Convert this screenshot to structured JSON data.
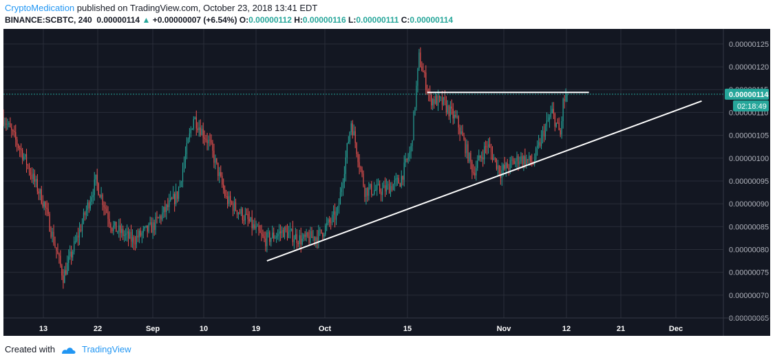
{
  "header": {
    "author": "CryptoMedication",
    "published_text": "published on TradingView.com, October 23, 2018 13:41 EDT"
  },
  "ohlc_bar": {
    "symbol": "BINANCE:SCBTC, 240",
    "last_price": "0.00000114",
    "up_arrow": "▲",
    "change": "+0.00000007 (+6.54%)",
    "o_label": "O:",
    "o_value": "0.00000112",
    "h_label": "H:",
    "h_value": "0.00000116",
    "l_label": "L:",
    "l_value": "0.00000111",
    "c_label": "C:",
    "c_value": "0.00000114"
  },
  "footer": {
    "created_with": "Created with",
    "brand": "TradingView"
  },
  "colors": {
    "background": "#131722",
    "grid": "#2a2e39",
    "up": "#26a69a",
    "down": "#ef5350",
    "trendline": "#ffffff",
    "price_line": "#26a69a",
    "brand": "#2196f3"
  },
  "chart_data": {
    "type": "candlestick",
    "title": "BINANCE:SCBTC, 240",
    "ylim": [
      6.5e-07,
      1.283e-06
    ],
    "y_ticks": [
      "0.00000065",
      "0.00000070",
      "0.00000075",
      "0.00000080",
      "0.00000085",
      "0.00000090",
      "0.00000095",
      "0.00000100",
      "0.00000105",
      "0.00000110",
      "0.00000115",
      "0.00000120",
      "0.00000125"
    ],
    "x_ticks": [
      "13",
      "22",
      "Sep",
      "10",
      "19",
      "Oct",
      "15",
      "Nov",
      "12",
      "21",
      "Dec"
    ],
    "current_price_label": "0.00000114",
    "countdown_label": "02:18:49",
    "price_anchors": [
      {
        "t": 0,
        "p": 1.09
      },
      {
        "t": 14,
        "p": 1.01
      },
      {
        "t": 30,
        "p": 0.9
      },
      {
        "t": 44,
        "p": 0.74
      },
      {
        "t": 56,
        "p": 0.84
      },
      {
        "t": 68,
        "p": 0.95
      },
      {
        "t": 80,
        "p": 0.85
      },
      {
        "t": 95,
        "p": 0.82
      },
      {
        "t": 110,
        "p": 0.85
      },
      {
        "t": 128,
        "p": 0.92
      },
      {
        "t": 140,
        "p": 1.09
      },
      {
        "t": 152,
        "p": 1.03
      },
      {
        "t": 164,
        "p": 0.91
      },
      {
        "t": 178,
        "p": 0.87
      },
      {
        "t": 192,
        "p": 0.82
      },
      {
        "t": 206,
        "p": 0.84
      },
      {
        "t": 220,
        "p": 0.82
      },
      {
        "t": 232,
        "p": 0.83
      },
      {
        "t": 246,
        "p": 0.88
      },
      {
        "t": 256,
        "p": 1.08
      },
      {
        "t": 266,
        "p": 0.93
      },
      {
        "t": 280,
        "p": 0.93
      },
      {
        "t": 292,
        "p": 0.95
      },
      {
        "t": 300,
        "p": 1.02
      },
      {
        "t": 306,
        "p": 1.22
      },
      {
        "t": 314,
        "p": 1.13
      },
      {
        "t": 324,
        "p": 1.12
      },
      {
        "t": 334,
        "p": 1.08
      },
      {
        "t": 346,
        "p": 0.97
      },
      {
        "t": 356,
        "p": 1.03
      },
      {
        "t": 366,
        "p": 0.97
      },
      {
        "t": 380,
        "p": 1.0
      },
      {
        "t": 390,
        "p": 0.99
      },
      {
        "t": 398,
        "p": 1.06
      },
      {
        "t": 404,
        "p": 1.1
      },
      {
        "t": 410,
        "p": 1.05
      },
      {
        "t": 412,
        "p": 1.12
      },
      {
        "t": 415,
        "p": 1.14
      }
    ],
    "trendline": {
      "start": {
        "t": 194,
        "p": 0.775
      },
      "end": {
        "t": 514,
        "p": 1.125
      }
    },
    "resistance": {
      "start": {
        "t": 312,
        "p": 1.144
      },
      "end": {
        "t": 431,
        "p": 1.144
      }
    },
    "current_price": 1.14
  }
}
